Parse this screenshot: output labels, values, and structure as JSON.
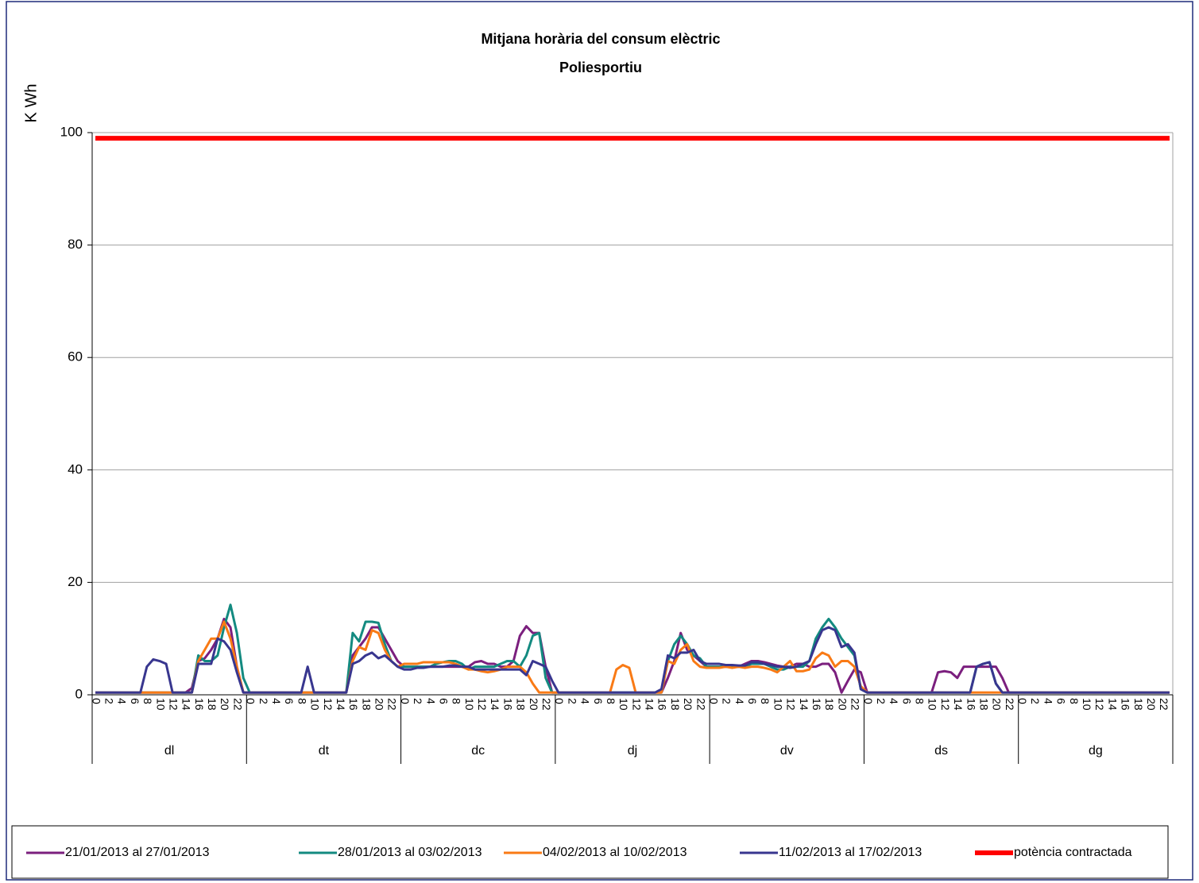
{
  "chart_data": {
    "type": "line",
    "title": "Mitjana horària del consum elèctric",
    "subtitle": "Poliesportiu",
    "y_label": "K Wh",
    "ylim": [
      0,
      100
    ],
    "yticks": [
      0,
      20,
      40,
      60,
      80,
      100
    ],
    "grid": true,
    "legend": "bottom",
    "groups": [
      "dl",
      "dt",
      "dc",
      "dj",
      "dv",
      "ds",
      "dg"
    ],
    "categories": [
      0,
      null,
      2,
      null,
      4,
      null,
      6,
      null,
      8,
      null,
      10,
      null,
      12,
      null,
      14,
      null,
      16,
      null,
      18,
      null,
      20,
      null,
      22,
      null,
      0,
      null,
      2,
      null,
      4,
      null,
      6,
      null,
      8,
      null,
      10,
      null,
      12,
      null,
      14,
      null,
      16,
      null,
      18,
      null,
      20,
      null,
      22,
      null,
      0,
      null,
      2,
      null,
      4,
      null,
      6,
      null,
      8,
      null,
      10,
      null,
      12,
      null,
      14,
      null,
      16,
      null,
      18,
      null,
      20,
      null,
      22,
      null,
      0,
      null,
      2,
      null,
      4,
      null,
      6,
      null,
      8,
      null,
      10,
      null,
      12,
      null,
      14,
      null,
      16,
      null,
      18,
      null,
      20,
      null,
      22,
      null,
      0,
      null,
      2,
      null,
      4,
      null,
      6,
      null,
      8,
      null,
      10,
      null,
      12,
      null,
      14,
      null,
      16,
      null,
      18,
      null,
      20,
      null,
      22,
      null,
      0,
      null,
      2,
      null,
      4,
      null,
      6,
      null,
      8,
      null,
      10,
      null,
      12,
      null,
      14,
      null,
      16,
      null,
      18,
      null,
      20,
      null,
      22,
      null,
      0,
      null,
      2,
      null,
      4,
      null,
      6,
      null,
      8,
      null,
      10,
      null,
      12,
      null,
      14,
      null,
      16,
      null,
      18,
      null,
      20,
      null,
      22,
      null
    ],
    "series": [
      {
        "name": "21/01/2013 al 27/01/2013",
        "color": "#7b1f7e",
        "width": 3,
        "values": [
          0.4,
          0.4,
          0.4,
          0.4,
          0.4,
          0.4,
          0.4,
          0.4,
          0.4,
          0.4,
          0.4,
          0.4,
          0.4,
          0.4,
          0.4,
          1.2,
          6,
          6.5,
          8,
          10,
          13.5,
          12,
          5,
          0.4,
          0.4,
          0.4,
          0.4,
          0.4,
          0.4,
          0.4,
          0.4,
          0.4,
          0.4,
          0.4,
          0.4,
          0.4,
          0.4,
          0.4,
          0.4,
          0.4,
          7,
          8.5,
          10,
          12,
          12,
          10,
          8,
          6,
          5,
          5,
          5,
          5,
          5,
          5,
          5,
          5,
          5,
          5,
          5,
          5.8,
          6,
          5.5,
          5.5,
          5,
          5,
          6,
          10.5,
          12.2,
          11,
          11,
          5,
          0.4,
          0.4,
          0.4,
          0.4,
          0.4,
          0.4,
          0.4,
          0.4,
          0.4,
          0.4,
          0.4,
          0.4,
          0.4,
          0.4,
          0.4,
          0.4,
          0.4,
          0.4,
          3,
          6,
          11,
          8,
          7,
          6,
          5,
          5,
          5,
          5,
          5,
          5,
          5.5,
          6,
          6,
          5.8,
          5.5,
          5.2,
          5,
          5,
          5.5,
          5.5,
          5,
          5,
          5.5,
          5.5,
          4,
          0.4,
          2.5,
          4.5,
          4,
          0.4,
          0.4,
          0.4,
          0.4,
          0.4,
          0.4,
          0.4,
          0.4,
          0.4,
          0.4,
          0.4,
          4,
          4.2,
          4,
          3,
          5,
          5,
          5,
          5,
          5,
          5,
          3,
          0.4,
          0.4,
          0.4,
          0.4,
          0.4,
          0.4,
          0.4,
          0.4,
          0.4,
          0.4,
          0.4,
          0.4,
          0.4,
          0.4,
          0.4,
          0.4,
          0.4,
          0.4,
          0.4,
          0.4,
          0.4,
          0.4,
          0.4,
          0.4,
          0.4,
          0.4
        ]
      },
      {
        "name": "28/01/2013 al 03/02/2013",
        "color": "#138a80",
        "width": 3,
        "values": [
          0.4,
          0.4,
          0.4,
          0.4,
          0.4,
          0.4,
          0.4,
          0.4,
          0.4,
          0.4,
          0.4,
          0.4,
          0.4,
          0.4,
          0.4,
          0.4,
          7,
          6,
          6,
          7,
          12,
          16,
          11,
          3,
          0.4,
          0.4,
          0.4,
          0.4,
          0.4,
          0.4,
          0.4,
          0.4,
          0.4,
          0.4,
          0.4,
          0.4,
          0.4,
          0.4,
          0.4,
          0.4,
          11,
          9.5,
          13,
          13,
          12.8,
          9,
          6,
          5,
          5,
          5,
          5,
          5,
          5,
          5.5,
          5.8,
          6,
          6,
          5.5,
          4.5,
          5,
          5,
          5,
          5,
          5.5,
          6,
          6,
          5,
          7,
          10.5,
          11,
          3,
          0.4,
          0.4,
          0.4,
          0.4,
          0.4,
          0.4,
          0.4,
          0.4,
          0.4,
          0.4,
          0.4,
          0.4,
          0.4,
          0.4,
          0.4,
          0.4,
          0.4,
          0.4,
          6,
          9,
          10.5,
          9,
          7,
          6.5,
          5,
          5,
          5,
          5,
          5,
          5,
          5,
          5.5,
          5.5,
          5.5,
          5,
          4.5,
          4.5,
          5,
          5,
          5,
          6,
          10,
          12,
          13.5,
          12,
          10,
          8.5,
          7,
          1,
          0.4,
          0.4,
          0.4,
          0.4,
          0.4,
          0.4,
          0.4,
          0.4,
          0.4,
          0.4,
          0.4,
          0.4,
          0.4,
          0.4,
          0.4,
          0.4,
          0.4,
          5,
          5.5,
          5.8,
          2,
          0.4,
          0.4,
          0.4,
          0.4,
          0.4,
          0.4,
          0.4,
          0.4,
          0.4,
          0.4,
          0.4,
          0.4,
          0.4,
          0.4,
          0.4,
          0.4,
          0.4,
          0.4,
          0.4,
          0.4,
          0.4,
          0.4,
          0.4,
          0.4,
          0.4,
          0.4,
          0.4
        ]
      },
      {
        "name": "04/02/2013 al 10/02/2013",
        "color": "#f97a15",
        "width": 3,
        "values": [
          0.4,
          0.4,
          0.4,
          0.4,
          0.4,
          0.4,
          0.4,
          0.4,
          0.4,
          0.4,
          0.4,
          0.4,
          0.4,
          0.4,
          0.4,
          0.4,
          6,
          8,
          10,
          10,
          13,
          10,
          5,
          0.4,
          0.4,
          0.4,
          0.4,
          0.4,
          0.4,
          0.4,
          0.4,
          0.4,
          0.4,
          0.4,
          0.4,
          0.4,
          0.4,
          0.4,
          0.4,
          0.4,
          6,
          8.5,
          8,
          11.5,
          11,
          8,
          6,
          5,
          5.5,
          5.5,
          5.5,
          5.8,
          5.8,
          5.8,
          5.8,
          5.8,
          5.5,
          5,
          4.5,
          4.5,
          4.2,
          4,
          4.2,
          4.5,
          5,
          5,
          5,
          4,
          2,
          0.4,
          0.4,
          0.4,
          0.4,
          0.4,
          0.4,
          0.4,
          0.4,
          0.4,
          0.4,
          0.4,
          0.4,
          4.5,
          5.3,
          4.8,
          0.4,
          0.4,
          0.4,
          0.4,
          0.4,
          6,
          5.5,
          8,
          9,
          6,
          5,
          4.8,
          4.8,
          4.8,
          5,
          4.8,
          5,
          4.8,
          5,
          5,
          4.8,
          4.5,
          4,
          5,
          6,
          4.2,
          4.2,
          4.5,
          6.5,
          7.5,
          7,
          5,
          6,
          6,
          5,
          1.5,
          0.4,
          0.4,
          0.4,
          0.4,
          0.4,
          0.4,
          0.4,
          0.4,
          0.4,
          0.4,
          0.4,
          0.4,
          0.4,
          0.4,
          0.4,
          0.4,
          0.4,
          0.4,
          0.4,
          0.4,
          0.4,
          0.4,
          0.4,
          0.4,
          0.4,
          0.4,
          0.4,
          0.4,
          0.4,
          0.4,
          0.4,
          0.4,
          0.4,
          0.4,
          0.4,
          0.4,
          0.4,
          0.4,
          0.4,
          0.4,
          0.4,
          0.4,
          0.4,
          0.4,
          0.4,
          0.4,
          0.4,
          0.4
        ]
      },
      {
        "name": "11/02/2013 al 17/02/2013",
        "color": "#38368f",
        "width": 3,
        "values": [
          0.4,
          0.4,
          0.4,
          0.4,
          0.4,
          0.4,
          0.4,
          0.4,
          5,
          6.3,
          6,
          5.5,
          0.4,
          0.4,
          0.4,
          0.4,
          5.5,
          5.5,
          5.5,
          10,
          9.5,
          8,
          4,
          0.4,
          0.4,
          0.4,
          0.4,
          0.4,
          0.4,
          0.4,
          0.4,
          0.4,
          0.4,
          5,
          0.4,
          0.4,
          0.4,
          0.4,
          0.4,
          0.4,
          5.5,
          6,
          7,
          7.5,
          6.5,
          7,
          6,
          5,
          4.5,
          4.5,
          4.8,
          4.8,
          5,
          5,
          5,
          5.2,
          5.2,
          5,
          5,
          4.5,
          4.5,
          4.5,
          4.5,
          4.5,
          4.5,
          4.5,
          4.5,
          3.5,
          6,
          5.5,
          5,
          2.5,
          0.4,
          0.4,
          0.4,
          0.4,
          0.4,
          0.4,
          0.4,
          0.4,
          0.4,
          0.4,
          0.4,
          0.4,
          0.4,
          0.4,
          0.4,
          0.4,
          1,
          7,
          6.5,
          7.5,
          7.5,
          8,
          6,
          5.5,
          5.5,
          5.5,
          5.3,
          5.3,
          5.2,
          5.2,
          5.8,
          5.8,
          5.5,
          5.3,
          5,
          5,
          4.8,
          5,
          5.5,
          6,
          9,
          11.5,
          12,
          11.5,
          8.5,
          9,
          7.5,
          1,
          0.4,
          0.4,
          0.4,
          0.4,
          0.4,
          0.4,
          0.4,
          0.4,
          0.4,
          0.4,
          0.4,
          0.4,
          0.4,
          0.4,
          0.4,
          0.4,
          0.4,
          5,
          5.5,
          5.8,
          2,
          0.4,
          0.4,
          0.4,
          0.4,
          0.4,
          0.4,
          0.4,
          0.4,
          0.4,
          0.4,
          0.4,
          0.4,
          0.4,
          0.4,
          0.4,
          0.4,
          0.4,
          0.4,
          0.4,
          0.4,
          0.4,
          0.4,
          0.4,
          0.4,
          0.4,
          0.4,
          0.4
        ]
      },
      {
        "name": "potència contractada",
        "color": "#ff0000",
        "width": 6,
        "values": [
          99,
          99,
          99,
          99,
          99,
          99,
          99,
          99,
          99,
          99,
          99,
          99,
          99,
          99,
          99,
          99,
          99,
          99,
          99,
          99,
          99,
          99,
          99,
          99,
          99,
          99,
          99,
          99,
          99,
          99,
          99,
          99,
          99,
          99,
          99,
          99,
          99,
          99,
          99,
          99,
          99,
          99,
          99,
          99,
          99,
          99,
          99,
          99,
          99,
          99,
          99,
          99,
          99,
          99,
          99,
          99,
          99,
          99,
          99,
          99,
          99,
          99,
          99,
          99,
          99,
          99,
          99,
          99,
          99,
          99,
          99,
          99,
          99,
          99,
          99,
          99,
          99,
          99,
          99,
          99,
          99,
          99,
          99,
          99,
          99,
          99,
          99,
          99,
          99,
          99,
          99,
          99,
          99,
          99,
          99,
          99,
          99,
          99,
          99,
          99,
          99,
          99,
          99,
          99,
          99,
          99,
          99,
          99,
          99,
          99,
          99,
          99,
          99,
          99,
          99,
          99,
          99,
          99,
          99,
          99,
          99,
          99,
          99,
          99,
          99,
          99,
          99,
          99,
          99,
          99,
          99,
          99,
          99,
          99,
          99,
          99,
          99,
          99,
          99,
          99,
          99,
          99,
          99,
          99,
          99,
          99,
          99,
          99,
          99,
          99,
          99,
          99,
          99,
          99,
          99,
          99,
          99,
          99,
          99,
          99,
          99,
          99,
          99,
          99,
          99,
          99,
          99,
          99
        ]
      }
    ]
  }
}
